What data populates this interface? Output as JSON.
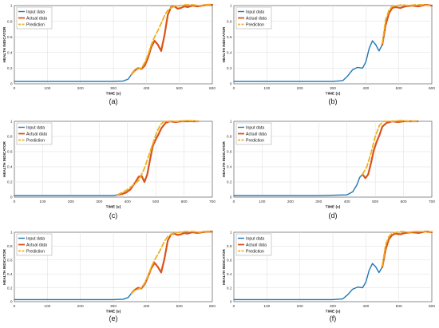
{
  "colors": {
    "input": "#1f77b4",
    "actual": "#d9541a",
    "prediction": "#edb120",
    "grid": "#dcdcdc",
    "axis": "#444444"
  },
  "chart_data": [
    {
      "type": "line",
      "caption": "(a)",
      "xlabel": "TIME (s)",
      "ylabel": "HEALTH INDICATOR",
      "xlim": [
        0,
        600
      ],
      "ylim": [
        0,
        1
      ],
      "xticks": [
        "0",
        "100",
        "200",
        "300",
        "400",
        "500",
        "600"
      ],
      "yticks": [
        "0",
        "0.2",
        "0.4",
        "0.6",
        "0.8",
        "1"
      ],
      "grid": true,
      "legend": "top-left",
      "series": [
        {
          "name": "Input data",
          "x": [
            0,
            100,
            200,
            300,
            330,
            345,
            355
          ],
          "y": [
            0.03,
            0.03,
            0.03,
            0.03,
            0.035,
            0.06,
            0.12
          ]
        },
        {
          "name": "Actual data",
          "x": [
            355,
            365,
            375,
            385,
            395,
            405,
            415,
            425,
            435,
            445,
            455,
            465,
            475,
            485,
            495,
            505,
            515,
            525,
            540,
            555,
            570,
            585,
            600
          ],
          "y": [
            0.12,
            0.17,
            0.2,
            0.19,
            0.23,
            0.33,
            0.47,
            0.55,
            0.5,
            0.42,
            0.62,
            0.88,
            0.98,
            0.99,
            0.96,
            0.97,
            0.99,
            0.98,
            1.0,
            0.99,
            1.0,
            1.01,
            1.01
          ]
        },
        {
          "name": "Prediction",
          "x": [
            355,
            365,
            375,
            385,
            395,
            405,
            415,
            425,
            435,
            445,
            455,
            465,
            475,
            485,
            500,
            520,
            540,
            560,
            580,
            600
          ],
          "y": [
            0.12,
            0.16,
            0.19,
            0.2,
            0.27,
            0.37,
            0.5,
            0.6,
            0.68,
            0.77,
            0.87,
            0.94,
            0.97,
            0.99,
            1.0,
            1.01,
            1.01,
            1.0,
            1.01,
            1.01
          ]
        }
      ]
    },
    {
      "type": "line",
      "caption": "(b)",
      "xlabel": "TIME (s)",
      "ylabel": "HEALTH INDICATOR",
      "xlim": [
        0,
        600
      ],
      "ylim": [
        0,
        1
      ],
      "xticks": [
        "0",
        "100",
        "200",
        "300",
        "400",
        "500",
        "600"
      ],
      "yticks": [
        "0",
        "0.2",
        "0.4",
        "0.6",
        "0.8",
        "1"
      ],
      "grid": true,
      "legend": "top-left",
      "series": [
        {
          "name": "Input data",
          "x": [
            0,
            100,
            200,
            300,
            330,
            345,
            360,
            375,
            390,
            400,
            410,
            420,
            430,
            440,
            450
          ],
          "y": [
            0.03,
            0.03,
            0.03,
            0.03,
            0.04,
            0.1,
            0.18,
            0.21,
            0.2,
            0.28,
            0.45,
            0.55,
            0.5,
            0.42,
            0.5
          ]
        },
        {
          "name": "Actual data",
          "x": [
            450,
            460,
            470,
            480,
            490,
            505,
            520,
            540,
            560,
            580,
            600
          ],
          "y": [
            0.5,
            0.75,
            0.9,
            0.97,
            0.98,
            0.97,
            0.99,
            1.0,
            0.99,
            1.01,
            1.0
          ]
        },
        {
          "name": "Prediction",
          "x": [
            450,
            460,
            470,
            480,
            495,
            510,
            530,
            550,
            570,
            590,
            600
          ],
          "y": [
            0.52,
            0.82,
            0.94,
            0.99,
            1.0,
            1.01,
            1.0,
            1.01,
            1.01,
            1.0,
            1.01
          ]
        }
      ]
    },
    {
      "type": "line",
      "caption": "(c)",
      "xlabel": "TIME (s)",
      "ylabel": "HEALTH INDICATOR",
      "xlim": [
        0,
        700
      ],
      "ylim": [
        0,
        1
      ],
      "xticks": [
        "0",
        "100",
        "200",
        "300",
        "400",
        "500",
        "600",
        "700"
      ],
      "yticks": [
        "0",
        "0.2",
        "0.4",
        "0.6",
        "0.8",
        "1"
      ],
      "grid": true,
      "legend": "top-left",
      "series": [
        {
          "name": "Input data",
          "x": [
            0,
            100,
            200,
            300,
            350,
            365
          ],
          "y": [
            0.02,
            0.02,
            0.02,
            0.02,
            0.02,
            0.03
          ]
        },
        {
          "name": "Actual data",
          "x": [
            365,
            380,
            395,
            410,
            425,
            440,
            450,
            460,
            470,
            480,
            490,
            500,
            510,
            520,
            535,
            550,
            570,
            590,
            620,
            650
          ],
          "y": [
            0.03,
            0.04,
            0.06,
            0.1,
            0.18,
            0.27,
            0.28,
            0.2,
            0.3,
            0.5,
            0.68,
            0.76,
            0.83,
            0.91,
            0.98,
            1.0,
            0.99,
            1.0,
            1.0,
            1.0
          ]
        },
        {
          "name": "Prediction",
          "x": [
            365,
            400,
            440,
            460,
            480,
            500,
            515,
            530,
            550,
            580,
            610,
            650
          ],
          "y": [
            0.03,
            0.1,
            0.22,
            0.38,
            0.6,
            0.82,
            0.95,
            1.0,
            1.0,
            1.0,
            1.01,
            1.0
          ]
        }
      ]
    },
    {
      "type": "line",
      "caption": "(d)",
      "xlabel": "TIME (s)",
      "ylabel": "HEALTH INDICATOR",
      "xlim": [
        0,
        700
      ],
      "ylim": [
        0,
        1
      ],
      "xticks": [
        "0",
        "100",
        "200",
        "300",
        "400",
        "500",
        "600",
        "700"
      ],
      "yticks": [
        "0",
        "0.2",
        "0.4",
        "0.6",
        "0.8",
        "1"
      ],
      "grid": true,
      "legend": "top-left",
      "series": [
        {
          "name": "Input data",
          "x": [
            0,
            100,
            200,
            300,
            400,
            420,
            435,
            445,
            455
          ],
          "y": [
            0.02,
            0.02,
            0.02,
            0.02,
            0.03,
            0.07,
            0.16,
            0.26,
            0.3
          ]
        },
        {
          "name": "Actual data",
          "x": [
            455,
            465,
            475,
            485,
            495,
            505,
            515,
            525,
            540,
            560,
            580,
            600,
            630,
            650
          ],
          "y": [
            0.3,
            0.25,
            0.3,
            0.45,
            0.62,
            0.73,
            0.82,
            0.93,
            0.98,
            1.0,
            0.99,
            1.0,
            1.0,
            1.0
          ]
        },
        {
          "name": "Prediction",
          "x": [
            455,
            470,
            485,
            500,
            515,
            530,
            545,
            560,
            590,
            620,
            650
          ],
          "y": [
            0.3,
            0.4,
            0.58,
            0.8,
            0.95,
            1.0,
            1.0,
            1.0,
            1.01,
            1.0,
            1.0
          ]
        }
      ]
    },
    {
      "type": "line",
      "caption": "(e)",
      "xlabel": "TIME (s)",
      "ylabel": "HEALTH INDICATOR",
      "xlim": [
        0,
        600
      ],
      "ylim": [
        0,
        1
      ],
      "xticks": [
        "0",
        "100",
        "200",
        "300",
        "400",
        "500",
        "600"
      ],
      "yticks": [
        "0",
        "0.2",
        "0.4",
        "0.6",
        "0.8",
        "1"
      ],
      "grid": true,
      "legend": "top-left",
      "series": [
        {
          "name": "Input data",
          "x": [
            0,
            100,
            200,
            300,
            330,
            345,
            355
          ],
          "y": [
            0.03,
            0.03,
            0.03,
            0.03,
            0.035,
            0.06,
            0.12
          ]
        },
        {
          "name": "Actual data",
          "x": [
            355,
            365,
            375,
            385,
            395,
            405,
            415,
            425,
            435,
            445,
            455,
            465,
            475,
            485,
            495,
            505,
            515,
            525,
            540,
            555,
            570,
            585,
            600
          ],
          "y": [
            0.12,
            0.17,
            0.2,
            0.19,
            0.25,
            0.36,
            0.48,
            0.56,
            0.5,
            0.42,
            0.62,
            0.88,
            0.97,
            0.98,
            0.96,
            0.97,
            0.99,
            0.98,
            1.0,
            0.99,
            1.0,
            1.01,
            1.01
          ]
        },
        {
          "name": "Prediction",
          "x": [
            355,
            365,
            375,
            385,
            395,
            405,
            415,
            425,
            435,
            445,
            455,
            465,
            475,
            485,
            500,
            520,
            540,
            560,
            580,
            600
          ],
          "y": [
            0.12,
            0.16,
            0.18,
            0.2,
            0.27,
            0.37,
            0.5,
            0.6,
            0.68,
            0.77,
            0.87,
            0.94,
            0.97,
            0.99,
            1.0,
            1.01,
            1.01,
            1.0,
            1.01,
            1.01
          ]
        }
      ]
    },
    {
      "type": "line",
      "caption": "(f)",
      "xlabel": "TIME (s)",
      "ylabel": "HEALTH INDICATOR",
      "xlim": [
        0,
        600
      ],
      "ylim": [
        0,
        1
      ],
      "xticks": [
        "0",
        "100",
        "200",
        "300",
        "400",
        "500",
        "600"
      ],
      "yticks": [
        "0",
        "0.2",
        "0.4",
        "0.6",
        "0.8",
        "1"
      ],
      "grid": true,
      "legend": "top-left",
      "series": [
        {
          "name": "Input data",
          "x": [
            0,
            100,
            200,
            300,
            330,
            345,
            360,
            375,
            390,
            400,
            410,
            420,
            430,
            440,
            450
          ],
          "y": [
            0.03,
            0.03,
            0.03,
            0.03,
            0.04,
            0.1,
            0.18,
            0.21,
            0.2,
            0.28,
            0.45,
            0.55,
            0.5,
            0.42,
            0.5
          ]
        },
        {
          "name": "Actual data",
          "x": [
            450,
            460,
            470,
            480,
            490,
            505,
            520,
            540,
            560,
            580,
            600
          ],
          "y": [
            0.5,
            0.75,
            0.9,
            0.96,
            0.98,
            0.97,
            0.99,
            1.0,
            0.99,
            1.01,
            1.0
          ]
        },
        {
          "name": "Prediction",
          "x": [
            450,
            460,
            470,
            480,
            495,
            510,
            530,
            550,
            570,
            590,
            600
          ],
          "y": [
            0.52,
            0.82,
            0.94,
            0.99,
            1.0,
            1.01,
            1.0,
            1.01,
            1.01,
            1.0,
            1.01
          ]
        }
      ]
    }
  ]
}
